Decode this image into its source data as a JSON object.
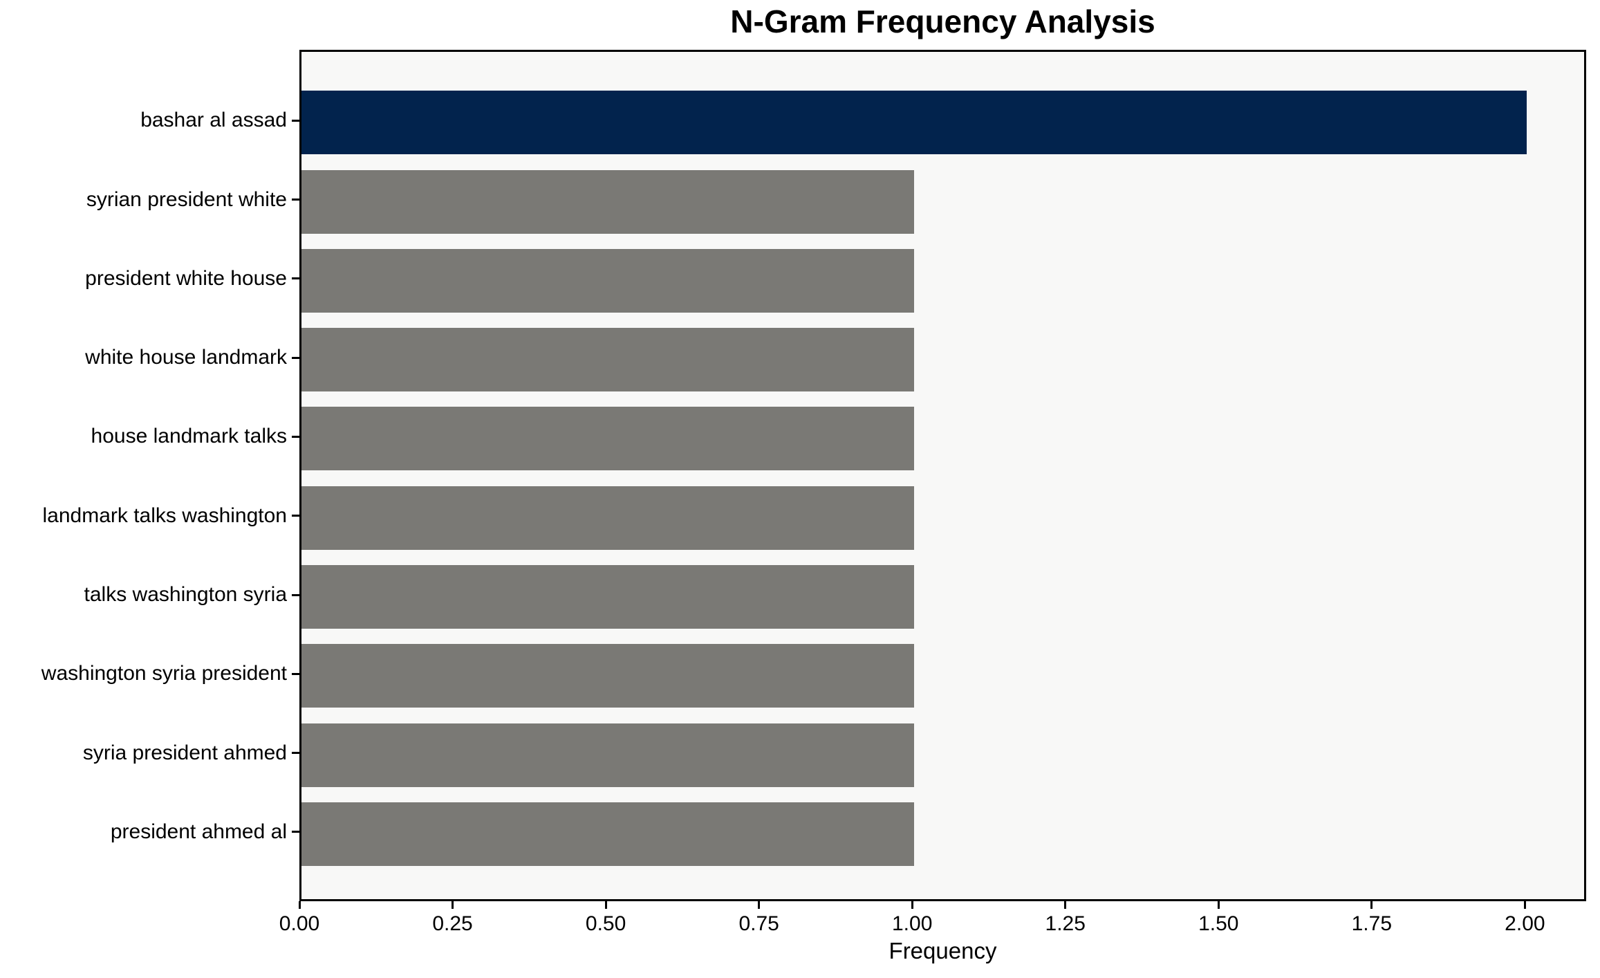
{
  "chart_data": {
    "type": "bar",
    "orientation": "horizontal",
    "title": "N-Gram Frequency Analysis",
    "xlabel": "Frequency",
    "ylabel": "",
    "categories": [
      "bashar al assad",
      "syrian president white",
      "president white house",
      "white house landmark",
      "house landmark talks",
      "landmark talks washington",
      "talks washington syria",
      "washington syria president",
      "syria president ahmed",
      "president ahmed al"
    ],
    "values": [
      2,
      1,
      1,
      1,
      1,
      1,
      1,
      1,
      1,
      1
    ],
    "bar_colors": [
      "#02234d",
      "#7a7975",
      "#7a7975",
      "#7a7975",
      "#7a7975",
      "#7a7975",
      "#7a7975",
      "#7a7975",
      "#7a7975",
      "#7a7975"
    ],
    "xlim": [
      0,
      2.1
    ],
    "x_tick_values": [
      0,
      0.25,
      0.5,
      0.75,
      1.0,
      1.25,
      1.5,
      1.75,
      2.0
    ],
    "x_tick_labels": [
      "0.00",
      "0.25",
      "0.50",
      "0.75",
      "1.00",
      "1.25",
      "1.50",
      "1.75",
      "2.00"
    ],
    "grid": false,
    "colors": {
      "highlight_bar": "#02234d",
      "default_bar": "#7a7975",
      "plot_background": "#f8f8f7",
      "figure_background": "#ffffff",
      "axis": "#000000",
      "text": "#000000"
    }
  }
}
